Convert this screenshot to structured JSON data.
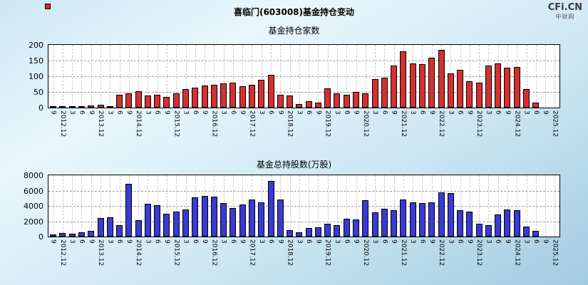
{
  "header": {
    "title": "喜临门(603008)基金持仓变动",
    "brand": "CFi.CN",
    "brand_sub": "中财网"
  },
  "chart_data": [
    {
      "type": "bar",
      "title": "基金持仓家数",
      "series_name": "fund-holder-count",
      "color": "#d53030",
      "ylim": [
        0,
        200
      ],
      "yticks": [
        0,
        50,
        100,
        150,
        200
      ],
      "grid": true,
      "legend_position": "none",
      "categories": [
        "9",
        "2012.12",
        "3",
        "6",
        "9",
        "2013.12",
        "3",
        "6",
        "9",
        "2014.12",
        "3",
        "6",
        "9",
        "2015.12",
        "3",
        "6",
        "9",
        "2016.12",
        "3",
        "6",
        "9",
        "2017.12",
        "3",
        "6",
        "9",
        "2018.12",
        "3",
        "6",
        "9",
        "2019.12",
        "3",
        "6",
        "9",
        "2020.12",
        "3",
        "6",
        "9",
        "2021.12",
        "3",
        "6",
        "9",
        "2022.12",
        "3",
        "6",
        "9",
        "2023.12",
        "3",
        "6",
        "9",
        "2024.12",
        "3",
        "6",
        "9",
        "2025.12"
      ],
      "values": [
        3,
        2,
        1,
        2,
        6,
        8,
        2,
        42,
        45,
        52,
        38,
        42,
        35,
        45,
        60,
        63,
        70,
        73,
        78,
        80,
        68,
        72,
        88,
        105,
        40,
        38,
        12,
        20,
        15,
        62,
        45,
        42,
        50,
        45,
        90,
        95,
        135,
        180,
        140,
        138,
        160,
        183,
        110,
        120,
        85,
        80,
        135,
        140,
        127,
        130,
        58,
        15,
        0,
        0
      ]
    },
    {
      "type": "bar",
      "title": "基金总持股数(万股)",
      "series_name": "fund-total-shares",
      "color": "#3a3ad4",
      "ylim": [
        0,
        8000
      ],
      "yticks": [
        0,
        2000,
        4000,
        6000,
        8000
      ],
      "grid": true,
      "legend_position": "none",
      "categories": [
        "9",
        "2012.12",
        "3",
        "6",
        "9",
        "2013.12",
        "3",
        "6",
        "9",
        "2014.12",
        "3",
        "6",
        "9",
        "2015.12",
        "3",
        "6",
        "9",
        "2016.12",
        "3",
        "6",
        "9",
        "2017.12",
        "3",
        "6",
        "9",
        "2018.12",
        "3",
        "6",
        "9",
        "2019.12",
        "3",
        "6",
        "9",
        "2020.12",
        "3",
        "6",
        "9",
        "2021.12",
        "3",
        "6",
        "9",
        "2022.12",
        "3",
        "6",
        "9",
        "2023.12",
        "3",
        "6",
        "9",
        "2024.12",
        "3",
        "6",
        "9",
        "2025.12"
      ],
      "values": [
        300,
        500,
        400,
        600,
        700,
        2400,
        2500,
        1500,
        6900,
        2100,
        4300,
        4100,
        3000,
        3300,
        3500,
        5100,
        5300,
        5200,
        4400,
        3700,
        4200,
        4800,
        4500,
        7300,
        4800,
        800,
        600,
        1100,
        1200,
        1700,
        1500,
        2300,
        2200,
        4700,
        3200,
        3600,
        3400,
        4800,
        4500,
        4400,
        4500,
        5800,
        5700,
        3400,
        3300,
        1700,
        1500,
        2900,
        3500,
        3400,
        1300,
        700,
        0,
        0
      ]
    }
  ]
}
